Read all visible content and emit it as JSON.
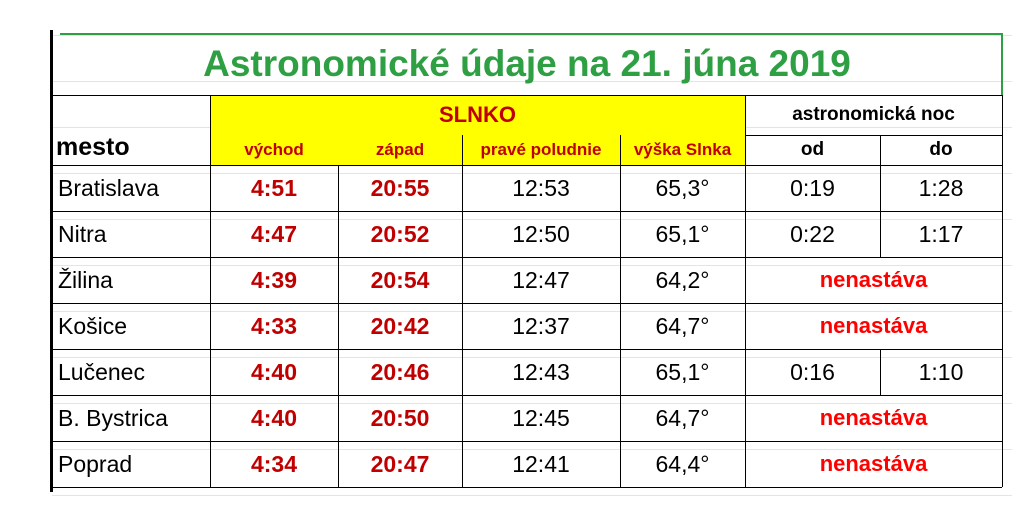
{
  "title": "Astronomické údaje na 21. júna 2019",
  "header": {
    "mesto": "mesto",
    "slnko": "SLNKO",
    "noc": "astronomická noc",
    "columns": [
      "východ",
      "západ",
      "pravé poludnie",
      "výška Slnka",
      "od",
      "do"
    ]
  },
  "rows": [
    [
      "Bratislava",
      "4:51",
      "20:55",
      "12:53",
      "65,3°",
      "0:19",
      "1:28"
    ],
    [
      "Nitra",
      "4:47",
      "20:52",
      "12:50",
      "65,1°",
      "0:22",
      "1:17"
    ],
    [
      "Žilina",
      "4:39",
      "20:54",
      "12:47",
      "64,2°",
      "nenastáva"
    ],
    [
      "Košice",
      "4:33",
      "20:42",
      "12:37",
      "64,7°",
      "nenastáva"
    ],
    [
      "Lučenec",
      "4:40",
      "20:46",
      "12:43",
      "65,1°",
      "0:16",
      "1:10"
    ],
    [
      "B. Bystrica",
      "4:40",
      "20:50",
      "12:45",
      "64,7°",
      "nenastáva"
    ],
    [
      "Poprad",
      "4:34",
      "20:47",
      "12:41",
      "64,4°",
      "nenastáva"
    ]
  ]
}
